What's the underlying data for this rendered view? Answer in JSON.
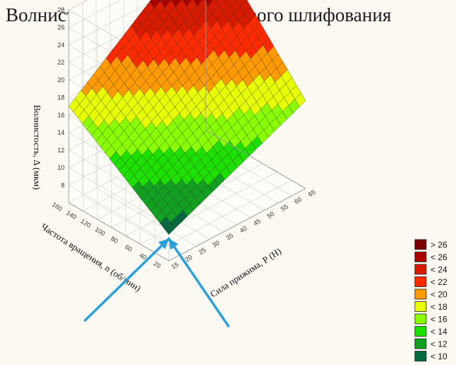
{
  "chart_data": {
    "type": "surface3d",
    "title": "Волнистость, после 3-х дискового шлифования",
    "xlabel": "Сила прижима, Р (Н)",
    "ylabel": "Частота вращения, n (об/мин)",
    "zlabel": "Волнистость, Δ (мкм)",
    "x_ticks": [
      15,
      20,
      25,
      30,
      35,
      40,
      45,
      50,
      55,
      60,
      65
    ],
    "y_ticks": [
      20,
      40,
      60,
      80,
      100,
      120,
      140,
      160
    ],
    "z_ticks": [
      8,
      10,
      12,
      14,
      16,
      18,
      20,
      22,
      24,
      26,
      28
    ],
    "xlim": [
      15,
      65
    ],
    "ylim": [
      20,
      160
    ],
    "zlim": [
      6,
      28
    ],
    "corner_values": {
      "x15_y20": 9,
      "x65_y20": 16,
      "x15_y160": 17,
      "x65_y160": 29
    },
    "grid": true,
    "legend_position": "right-bottom",
    "legend": [
      {
        "label": "> 26",
        "color": "#7a0000"
      },
      {
        "label": "< 26",
        "color": "#a80000"
      },
      {
        "label": "< 24",
        "color": "#d81a00"
      },
      {
        "label": "< 22",
        "color": "#ff2a00"
      },
      {
        "label": "< 20",
        "color": "#ff9a00"
      },
      {
        "label": "< 18",
        "color": "#e8ff00"
      },
      {
        "label": "< 16",
        "color": "#8aff00"
      },
      {
        "label": "< 14",
        "color": "#1ee000"
      },
      {
        "label": "< 12",
        "color": "#12a020"
      },
      {
        "label": "< 10",
        "color": "#06683f"
      }
    ],
    "arrow_color": "#2aa0dc"
  }
}
